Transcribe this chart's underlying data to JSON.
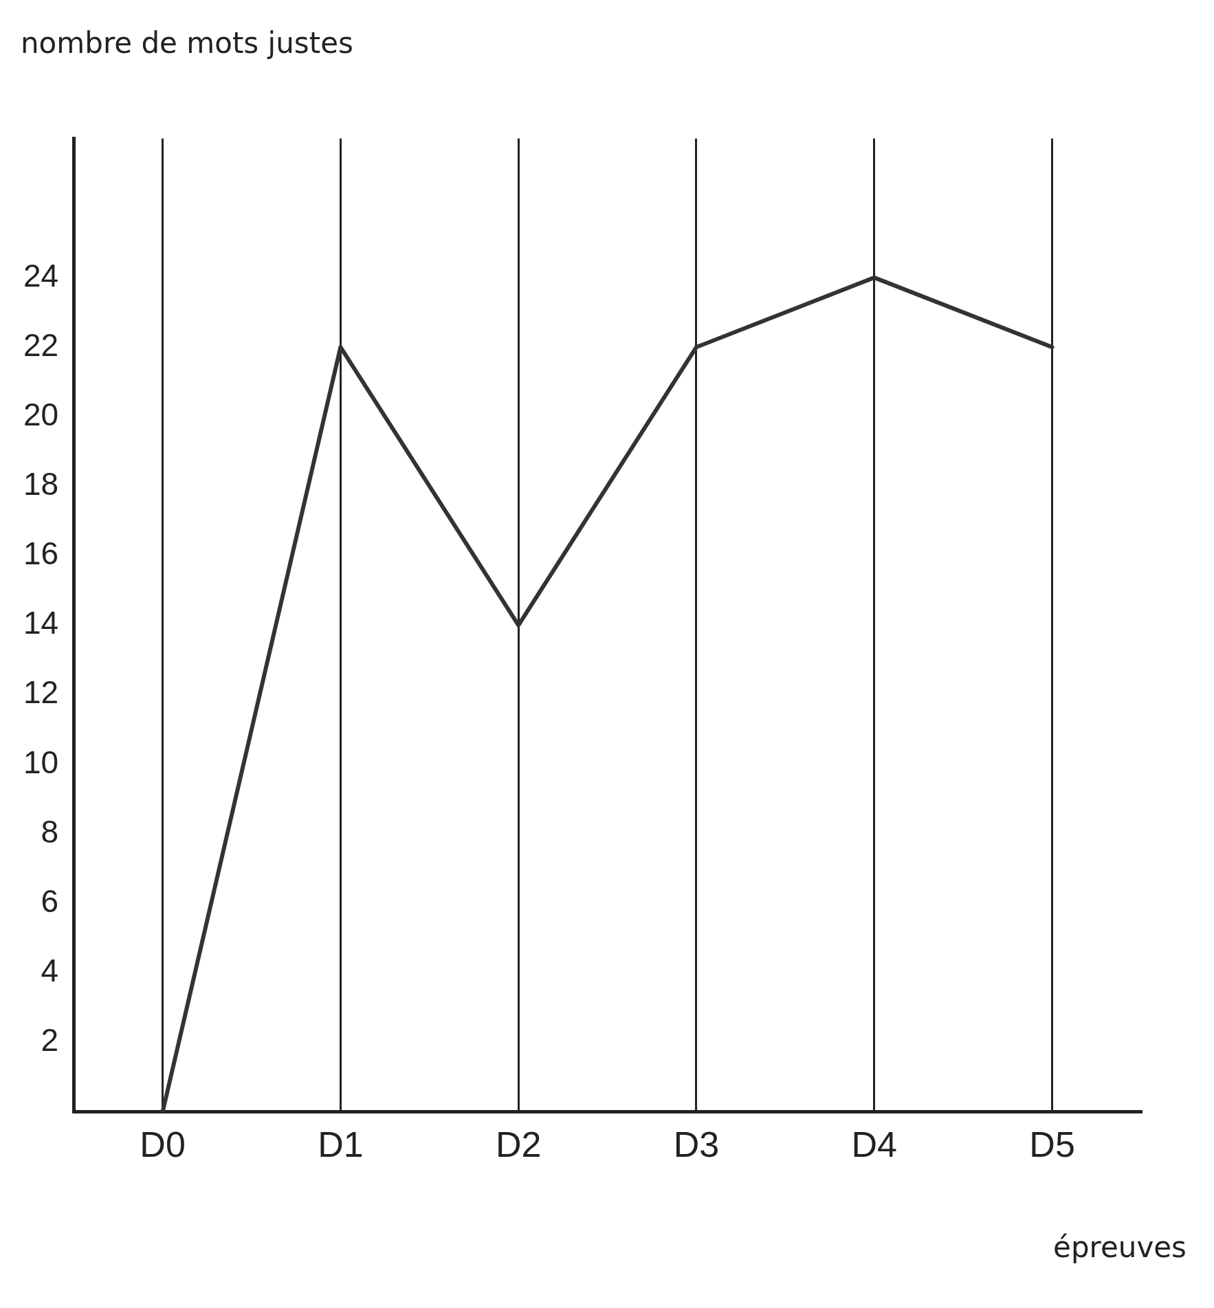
{
  "chart_data": {
    "type": "line",
    "xlabel": "épreuves",
    "ylabel": "nombre de mots justes",
    "categories": [
      "D0",
      "D1",
      "D2",
      "D3",
      "D4",
      "D5"
    ],
    "series": [
      {
        "color": "#333333",
        "values": [
          0,
          22,
          14,
          22,
          24,
          22
        ]
      }
    ],
    "ylim": [
      0,
      28
    ],
    "yticks": [
      2,
      4,
      6,
      8,
      10,
      12,
      14,
      16,
      18,
      20,
      22,
      24
    ],
    "grid": "x",
    "legend": false,
    "marker": "none",
    "line_style": "solid"
  }
}
